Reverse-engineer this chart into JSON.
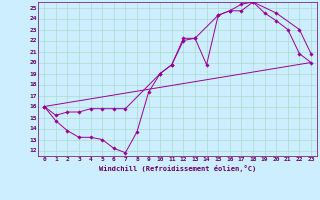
{
  "xlabel": "Windchill (Refroidissement éolien,°C)",
  "bg_color": "#cceeff",
  "grid_color": "#aaddcc",
  "line_color": "#990099",
  "xlim": [
    -0.5,
    23.5
  ],
  "ylim": [
    11.5,
    25.5
  ],
  "xticks": [
    0,
    1,
    2,
    3,
    4,
    5,
    6,
    7,
    8,
    9,
    10,
    11,
    12,
    13,
    14,
    15,
    16,
    17,
    18,
    19,
    20,
    21,
    22,
    23
  ],
  "yticks": [
    12,
    13,
    14,
    15,
    16,
    17,
    18,
    19,
    20,
    21,
    22,
    23,
    24,
    25
  ],
  "line1_x": [
    0,
    1,
    2,
    3,
    4,
    5,
    6,
    7,
    8,
    9,
    10,
    11,
    12,
    13,
    14,
    15,
    16,
    17,
    18,
    19,
    20,
    21,
    22,
    23
  ],
  "line1_y": [
    16.0,
    14.7,
    13.8,
    13.2,
    13.2,
    13.0,
    12.2,
    11.8,
    13.7,
    17.3,
    19.0,
    19.8,
    22.2,
    22.2,
    19.8,
    24.3,
    24.7,
    25.3,
    25.5,
    24.5,
    23.8,
    23.0,
    20.8,
    20.0
  ],
  "line2_x": [
    0,
    1,
    2,
    3,
    4,
    5,
    6,
    7,
    10,
    11,
    12,
    13,
    15,
    16,
    17,
    18,
    20,
    22,
    23
  ],
  "line2_y": [
    16.0,
    15.2,
    15.5,
    15.5,
    15.8,
    15.8,
    15.8,
    15.8,
    19.0,
    19.8,
    22.0,
    22.2,
    24.3,
    24.7,
    24.7,
    25.5,
    24.5,
    23.0,
    20.8
  ],
  "line3_x": [
    0,
    23
  ],
  "line3_y": [
    16.0,
    20.0
  ]
}
